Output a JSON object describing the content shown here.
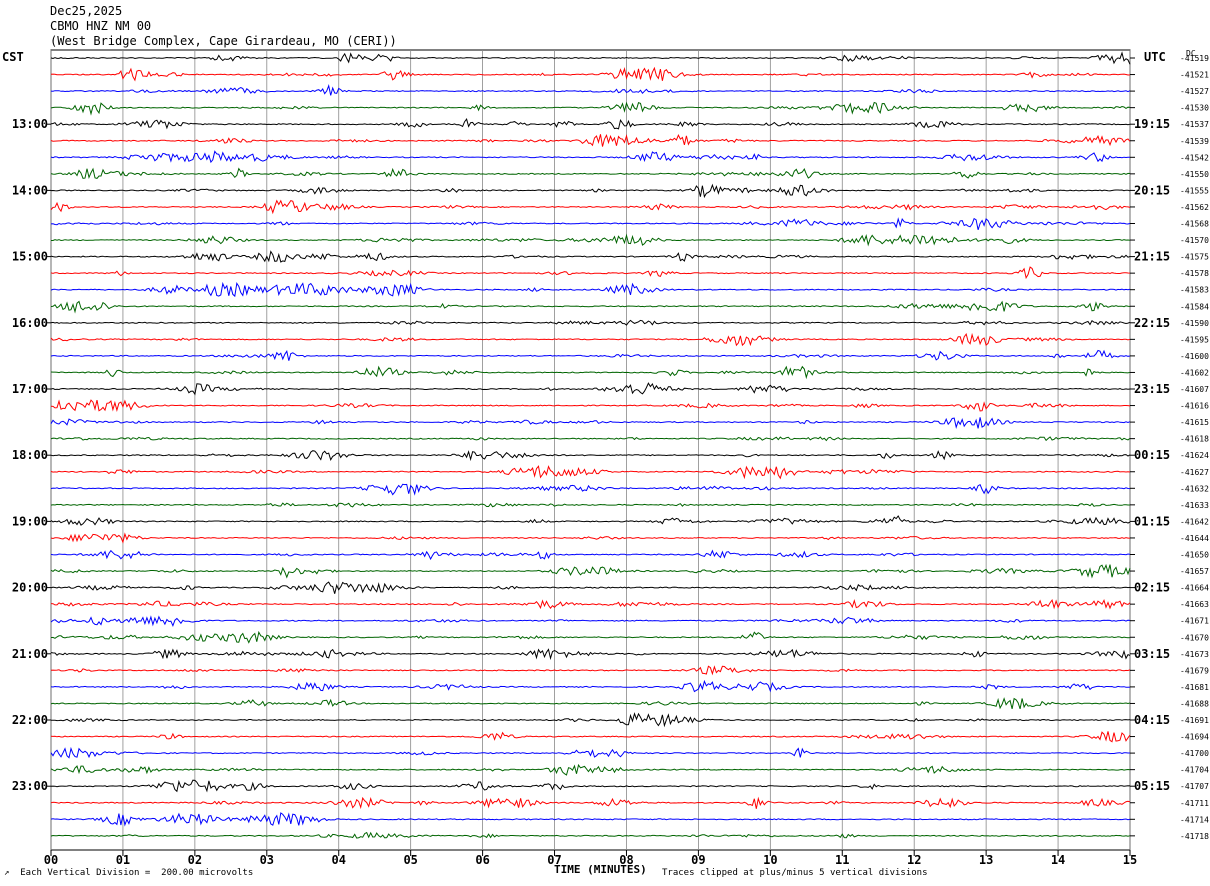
{
  "header": {
    "date": "Dec25,2025",
    "station": "CBMO HNZ NM 00",
    "location": "(West Bridge Complex, Cape Girardeau, MO (CERI))"
  },
  "chart_data": {
    "type": "line",
    "left_timezone": "CST",
    "right_timezone": "UTC",
    "dc_label": "DC",
    "xlabel": "TIME (MINUTES)",
    "xlim": [
      0,
      15
    ],
    "x_ticks": [
      "00",
      "01",
      "02",
      "03",
      "04",
      "05",
      "06",
      "07",
      "08",
      "09",
      "10",
      "11",
      "12",
      "13",
      "14",
      "15"
    ],
    "left_hour_labels": [
      "13:00",
      "14:00",
      "15:00",
      "16:00",
      "17:00",
      "18:00",
      "19:00",
      "20:00",
      "21:00",
      "22:00",
      "23:00"
    ],
    "right_hour_labels": [
      "19:15",
      "20:15",
      "21:15",
      "22:15",
      "23:15",
      "00:15",
      "01:15",
      "02:15",
      "03:15",
      "04:15",
      "05:15"
    ],
    "trace_colors": [
      "#000000",
      "#ff0000",
      "#0000ff",
      "#006400"
    ],
    "dc_offsets": [
      "-41519",
      "-41521",
      "-41527",
      "-41530",
      "-41537",
      "-41539",
      "-41542",
      "-41550",
      "-41555",
      "-41562",
      "-41568",
      "-41570",
      "-41575",
      "-41578",
      "-41583",
      "-41584",
      "-41590",
      "-41595",
      "-41600",
      "-41602",
      "-41607",
      "-41616",
      "-41615",
      "-41618",
      "-41624",
      "-41627",
      "-41632",
      "-41633",
      "-41642",
      "-41644",
      "-41650",
      "-41657",
      "-41664",
      "-41663",
      "-41671",
      "-41670",
      "-41673",
      "-41679",
      "-41681",
      "-41688",
      "-41691",
      "-41694",
      "-41700",
      "-41704",
      "-41707",
      "-41711",
      "-41714",
      "-41718"
    ],
    "grid": "vertical"
  },
  "footer": {
    "scale_note": "Each Vertical Division =  200.00 microvolts",
    "clip_note": "Traces clipped at plus/minus 5 vertical divisions"
  }
}
